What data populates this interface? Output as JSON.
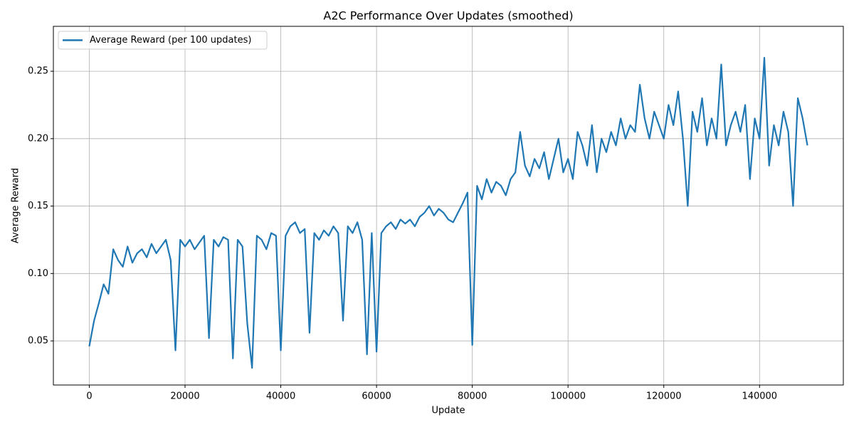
{
  "chart_data": {
    "type": "line",
    "title": "A2C Performance Over Updates (smoothed)",
    "xlabel": "Update",
    "ylabel": "Average Reward",
    "x": [
      0,
      1000,
      2000,
      3000,
      4000,
      5000,
      6000,
      7000,
      8000,
      9000,
      10000,
      11000,
      12000,
      13000,
      14000,
      15000,
      16000,
      17000,
      18000,
      19000,
      20000,
      21000,
      22000,
      23000,
      24000,
      25000,
      26000,
      27000,
      28000,
      29000,
      30000,
      31000,
      32000,
      33000,
      34000,
      35000,
      36000,
      37000,
      38000,
      39000,
      40000,
      41000,
      42000,
      43000,
      44000,
      45000,
      46000,
      47000,
      48000,
      49000,
      50000,
      51000,
      52000,
      53000,
      54000,
      55000,
      56000,
      57000,
      58000,
      59000,
      60000,
      61000,
      62000,
      63000,
      64000,
      65000,
      66000,
      67000,
      68000,
      69000,
      70000,
      71000,
      72000,
      73000,
      74000,
      75000,
      76000,
      77000,
      78000,
      79000,
      80000,
      81000,
      82000,
      83000,
      84000,
      85000,
      86000,
      87000,
      88000,
      89000,
      90000,
      91000,
      92000,
      93000,
      94000,
      95000,
      96000,
      97000,
      98000,
      99000,
      100000,
      101000,
      102000,
      103000,
      104000,
      105000,
      106000,
      107000,
      108000,
      109000,
      110000,
      111000,
      112000,
      113000,
      114000,
      115000,
      116000,
      117000,
      118000,
      119000,
      120000,
      121000,
      122000,
      123000,
      124000,
      125000,
      126000,
      127000,
      128000,
      129000,
      130000,
      131000,
      132000,
      133000,
      134000,
      135000,
      136000,
      137000,
      138000,
      139000,
      140000,
      141000,
      142000,
      143000,
      144000,
      145000,
      146000,
      147000,
      148000,
      149000,
      150000
    ],
    "series": [
      {
        "name": "Average Reward (per 100 updates)",
        "color": "#1f77b4",
        "values": [
          0.046,
          0.065,
          0.078,
          0.092,
          0.085,
          0.118,
          0.11,
          0.105,
          0.12,
          0.108,
          0.115,
          0.118,
          0.112,
          0.122,
          0.115,
          0.12,
          0.125,
          0.11,
          0.043,
          0.125,
          0.12,
          0.125,
          0.118,
          0.123,
          0.128,
          0.052,
          0.125,
          0.12,
          0.127,
          0.125,
          0.037,
          0.125,
          0.12,
          0.063,
          0.03,
          0.128,
          0.125,
          0.118,
          0.13,
          0.128,
          0.043,
          0.128,
          0.135,
          0.138,
          0.13,
          0.133,
          0.056,
          0.13,
          0.125,
          0.132,
          0.128,
          0.135,
          0.13,
          0.065,
          0.135,
          0.13,
          0.138,
          0.125,
          0.04,
          0.13,
          0.042,
          0.13,
          0.135,
          0.138,
          0.133,
          0.14,
          0.137,
          0.14,
          0.135,
          0.142,
          0.145,
          0.15,
          0.143,
          0.148,
          0.145,
          0.14,
          0.138,
          0.145,
          0.152,
          0.16,
          0.047,
          0.165,
          0.155,
          0.17,
          0.16,
          0.168,
          0.165,
          0.158,
          0.17,
          0.175,
          0.205,
          0.18,
          0.172,
          0.185,
          0.178,
          0.19,
          0.17,
          0.185,
          0.2,
          0.175,
          0.185,
          0.17,
          0.205,
          0.195,
          0.18,
          0.21,
          0.175,
          0.2,
          0.19,
          0.205,
          0.195,
          0.215,
          0.2,
          0.21,
          0.205,
          0.24,
          0.215,
          0.2,
          0.22,
          0.21,
          0.2,
          0.225,
          0.21,
          0.235,
          0.2,
          0.15,
          0.22,
          0.205,
          0.23,
          0.195,
          0.215,
          0.2,
          0.255,
          0.195,
          0.21,
          0.22,
          0.205,
          0.225,
          0.17,
          0.215,
          0.2,
          0.26,
          0.18,
          0.21,
          0.195,
          0.22,
          0.205,
          0.15,
          0.23,
          0.215,
          0.195
        ]
      }
    ],
    "xlim": [
      -7500,
      157500
    ],
    "ylim": [
      0.0173,
      0.2833
    ],
    "xticks": [
      0,
      20000,
      40000,
      60000,
      80000,
      100000,
      120000,
      140000
    ],
    "yticks": [
      0.05,
      {
        "value": 0.1,
        "label": "0.10"
      },
      0.15,
      {
        "value": 0.2,
        "label": "0.20"
      },
      0.25
    ],
    "grid": true,
    "legend": "upper-left"
  }
}
